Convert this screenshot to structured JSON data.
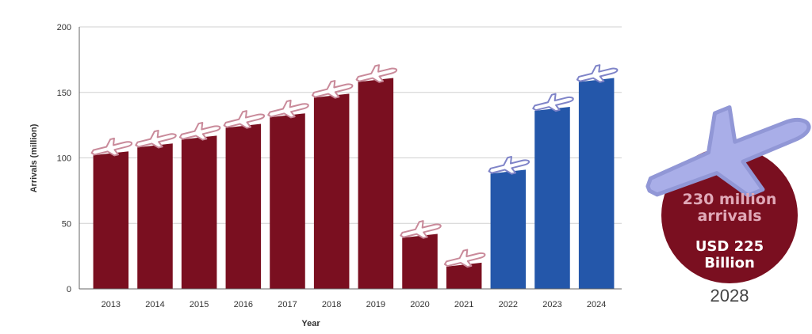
{
  "chart_data": {
    "type": "bar",
    "title": "",
    "xlabel": "Year",
    "ylabel": "Arrivals (million)",
    "ylim": [
      0,
      200
    ],
    "yticks": [
      0,
      50,
      100,
      150,
      200
    ],
    "grid": true,
    "categories": [
      "2013",
      "2014",
      "2015",
      "2016",
      "2017",
      "2018",
      "2019",
      "2020",
      "2021",
      "2022",
      "2023",
      "2024"
    ],
    "values": [
      105,
      111,
      117,
      126,
      134,
      149,
      161,
      42,
      20,
      91,
      139,
      161
    ],
    "bar_colors": [
      "#7a0f20",
      "#7a0f20",
      "#7a0f20",
      "#7a0f20",
      "#7a0f20",
      "#7a0f20",
      "#7a0f20",
      "#7a0f20",
      "#7a0f20",
      "#2457aa",
      "#2457aa",
      "#2457aa"
    ],
    "plane_colors": [
      "#c98a9a",
      "#c98a9a",
      "#c98a9a",
      "#c98a9a",
      "#c98a9a",
      "#c98a9a",
      "#c98a9a",
      "#c98a9a",
      "#c98a9a",
      "#7f84c8",
      "#7f84c8",
      "#7f84c8"
    ]
  },
  "callout": {
    "line1a": "230 million",
    "line1b": "arrivals",
    "line2a": "USD 225",
    "line2b": "Billion",
    "year": "2028",
    "circle_color": "#7a0f20",
    "plane_color": "#a9aee8"
  }
}
